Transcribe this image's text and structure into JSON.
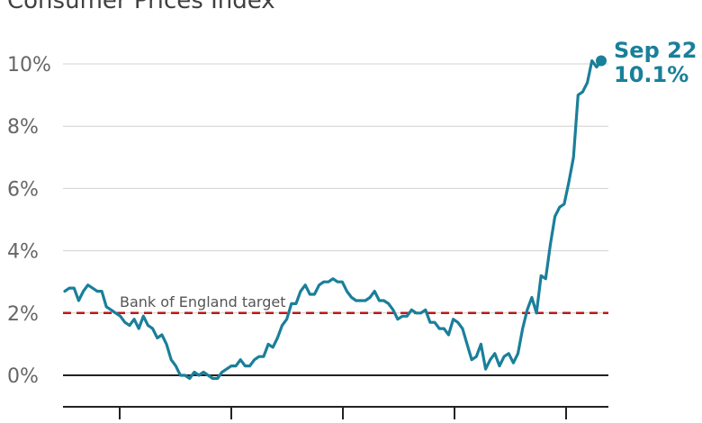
{
  "chart_data": {
    "type": "line",
    "subtitle": "Consumer Prices Index",
    "y_ticks": [
      "0%",
      "2%",
      "4%",
      "6%",
      "8%",
      "10%"
    ],
    "ylim": [
      -1,
      10.5
    ],
    "grid": true,
    "reference_line": {
      "label": "Bank of England target",
      "value": 2
    },
    "callout": {
      "date_label": "Sep 22",
      "value_label": "10.1%"
    },
    "series": [
      {
        "values": [
          2.7,
          2.8,
          2.8,
          2.4,
          2.7,
          2.9,
          2.8,
          2.7,
          2.7,
          2.2,
          2.1,
          2.0,
          1.9,
          1.7,
          1.6,
          1.8,
          1.5,
          1.9,
          1.6,
          1.5,
          1.2,
          1.3,
          1.0,
          0.5,
          0.3,
          0.0,
          0.0,
          -0.1,
          0.1,
          0.0,
          0.1,
          0.0,
          -0.1,
          -0.1,
          0.1,
          0.2,
          0.3,
          0.3,
          0.5,
          0.3,
          0.3,
          0.5,
          0.6,
          0.6,
          1.0,
          0.9,
          1.2,
          1.6,
          1.8,
          2.3,
          2.3,
          2.7,
          2.9,
          2.6,
          2.6,
          2.9,
          3.0,
          3.0,
          3.1,
          3.0,
          3.0,
          2.7,
          2.5,
          2.4,
          2.4,
          2.4,
          2.5,
          2.7,
          2.4,
          2.4,
          2.3,
          2.1,
          1.8,
          1.9,
          1.9,
          2.1,
          2.0,
          2.0,
          2.1,
          1.7,
          1.7,
          1.5,
          1.5,
          1.3,
          1.8,
          1.7,
          1.5,
          1.0,
          0.5,
          0.6,
          1.0,
          0.2,
          0.5,
          0.7,
          0.3,
          0.6,
          0.7,
          0.4,
          0.7,
          1.5,
          2.1,
          2.5,
          2.0,
          3.2,
          3.1,
          4.2,
          5.1,
          5.4,
          5.5,
          6.2,
          7.0,
          9.0,
          9.1,
          9.4,
          10.1,
          9.9,
          10.1
        ]
      }
    ]
  },
  "colors": {
    "line": "#1a7f9a",
    "reference": "#bb1919",
    "grid": "#d0d0d0",
    "axis": "#222222"
  }
}
